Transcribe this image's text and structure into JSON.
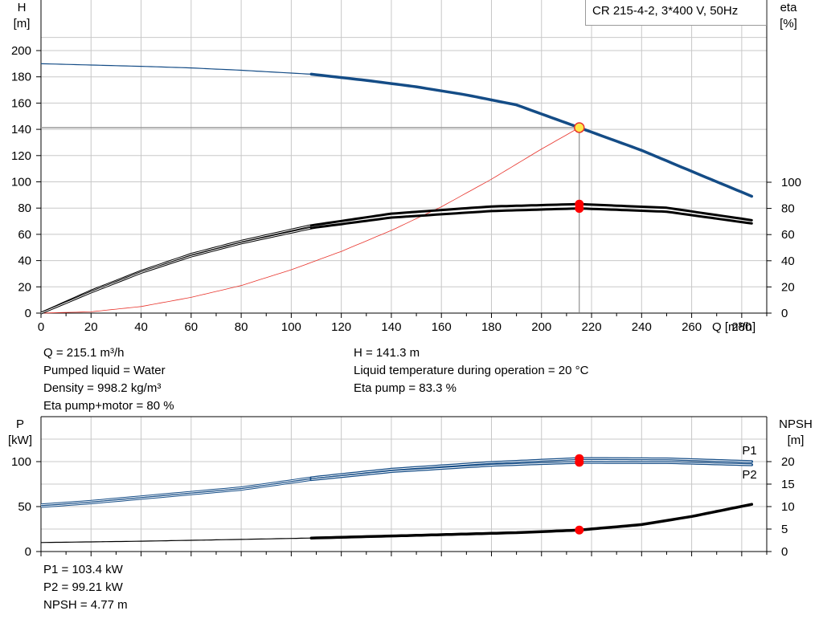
{
  "pump_label": "CR 215-4-2, 3*400 V, 50Hz",
  "info_top_left": [
    "Q = 215.1 m³/h",
    "Pumped liquid = Water",
    "Density = 998.2 kg/m³",
    "Eta pump+motor = 80 %"
  ],
  "info_top_right": [
    "H = 141.3 m",
    "Liquid temperature during operation = 20 °C",
    "Eta pump = 83.3 %"
  ],
  "info_bottom": [
    "P1 = 103.4 kW",
    "P2 = 99.21 kW",
    "NPSH = 4.77 m"
  ],
  "colors": {
    "head": "#144c86",
    "eta": "#000000",
    "system": "#e8342c",
    "marker": "#ff0000",
    "power": "#144c86",
    "npsh": "#000000",
    "grid": "#c8c8c8",
    "duty_point_fill": "#ffe94a"
  },
  "chart_data": [
    {
      "type": "line",
      "x_axis": {
        "label": "Q [m³/h]",
        "range": [
          0,
          290
        ],
        "ticks": [
          0,
          20,
          40,
          60,
          80,
          100,
          120,
          140,
          160,
          180,
          200,
          220,
          240,
          260,
          280
        ]
      },
      "y_axis_left": {
        "label_lines": [
          "H",
          "[m]"
        ],
        "range": [
          0,
          200
        ],
        "ticks": [
          0,
          20,
          40,
          60,
          80,
          100,
          120,
          140,
          160,
          180,
          200
        ]
      },
      "y_axis_right": {
        "label_lines": [
          "eta",
          "[%]"
        ],
        "range": [
          0,
          100
        ],
        "ticks": [
          0,
          20,
          40,
          60,
          80,
          100
        ]
      },
      "grid": true,
      "duty_point": {
        "q": 215.1,
        "h": 141.3,
        "eta_pump": 83.3,
        "eta_total": 80
      },
      "series": [
        {
          "key": "head",
          "axis": "left",
          "x": [
            0,
            20,
            40,
            60,
            80,
            108,
            130,
            150,
            170,
            190,
            215.1,
            240,
            260,
            284
          ],
          "y": [
            190,
            189,
            188,
            186.8,
            185,
            182,
            177.3,
            172.4,
            166.2,
            158.6,
            141.3,
            124,
            108,
            89
          ],
          "thick_from": 108
        },
        {
          "key": "eta_pump",
          "axis": "right",
          "x": [
            0,
            20,
            40,
            60,
            80,
            108,
            140,
            180,
            215.1,
            250,
            284
          ],
          "y": [
            0,
            17,
            32,
            45,
            55,
            67,
            76,
            81.5,
            83.3,
            80.5,
            71
          ],
          "thick_from": 108
        },
        {
          "key": "eta_total",
          "axis": "right",
          "x": [
            0,
            20,
            40,
            60,
            80,
            108,
            140,
            180,
            215.1,
            250,
            284
          ],
          "y": [
            0,
            16,
            31,
            43.5,
            53.5,
            65,
            73,
            78,
            80,
            77.5,
            68.5
          ],
          "thick_from": 108
        },
        {
          "key": "system",
          "axis": "left",
          "x": [
            0,
            20,
            40,
            60,
            80,
            100,
            120,
            140,
            160,
            180,
            200,
            215.1
          ],
          "y": [
            0,
            1,
            5,
            12,
            21,
            33,
            47,
            63,
            81,
            102,
            125,
            141.3
          ]
        }
      ]
    },
    {
      "type": "line",
      "x_axis": {
        "range": [
          0,
          290
        ],
        "ticks": [
          0,
          20,
          40,
          60,
          80,
          100,
          120,
          140,
          160,
          180,
          200,
          220,
          240,
          260,
          280
        ]
      },
      "y_axis_left": {
        "label_lines": [
          "P",
          "[kW]"
        ],
        "range": [
          0,
          125
        ],
        "ticks": [
          0,
          50,
          100
        ]
      },
      "y_axis_right": {
        "label_lines": [
          "NPSH",
          "[m]"
        ],
        "range": [
          0,
          25
        ],
        "ticks": [
          0,
          5,
          10,
          15,
          20
        ]
      },
      "grid": true,
      "series": [
        {
          "key": "P1",
          "name": "P1",
          "axis": "left",
          "x": [
            0,
            20,
            40,
            60,
            80,
            108,
            140,
            180,
            215.1,
            250,
            284
          ],
          "y": [
            52,
            56,
            61,
            66,
            71,
            82,
            91.5,
            99,
            103.4,
            103,
            100
          ],
          "thick_from": 108
        },
        {
          "key": "P2",
          "name": "P2",
          "axis": "left",
          "x": [
            0,
            20,
            40,
            60,
            80,
            108,
            140,
            180,
            215.1,
            250,
            284
          ],
          "y": [
            50,
            54,
            59,
            64,
            69,
            80,
            89,
            96,
            99.21,
            99,
            96.5
          ],
          "thick_from": 108
        },
        {
          "key": "npsh",
          "axis": "right",
          "x": [
            0,
            40,
            80,
            108,
            150,
            190,
            215.1,
            240,
            260,
            284
          ],
          "y": [
            2,
            2.3,
            2.7,
            3,
            3.6,
            4.2,
            4.77,
            6,
            7.8,
            10.5
          ],
          "thick_from": 108
        }
      ],
      "markers": [
        {
          "axis": "left",
          "q": 215.1,
          "value": 103.4
        },
        {
          "axis": "left",
          "q": 215.1,
          "value": 99.21
        },
        {
          "axis": "right",
          "q": 215.1,
          "value": 4.77
        }
      ]
    }
  ]
}
